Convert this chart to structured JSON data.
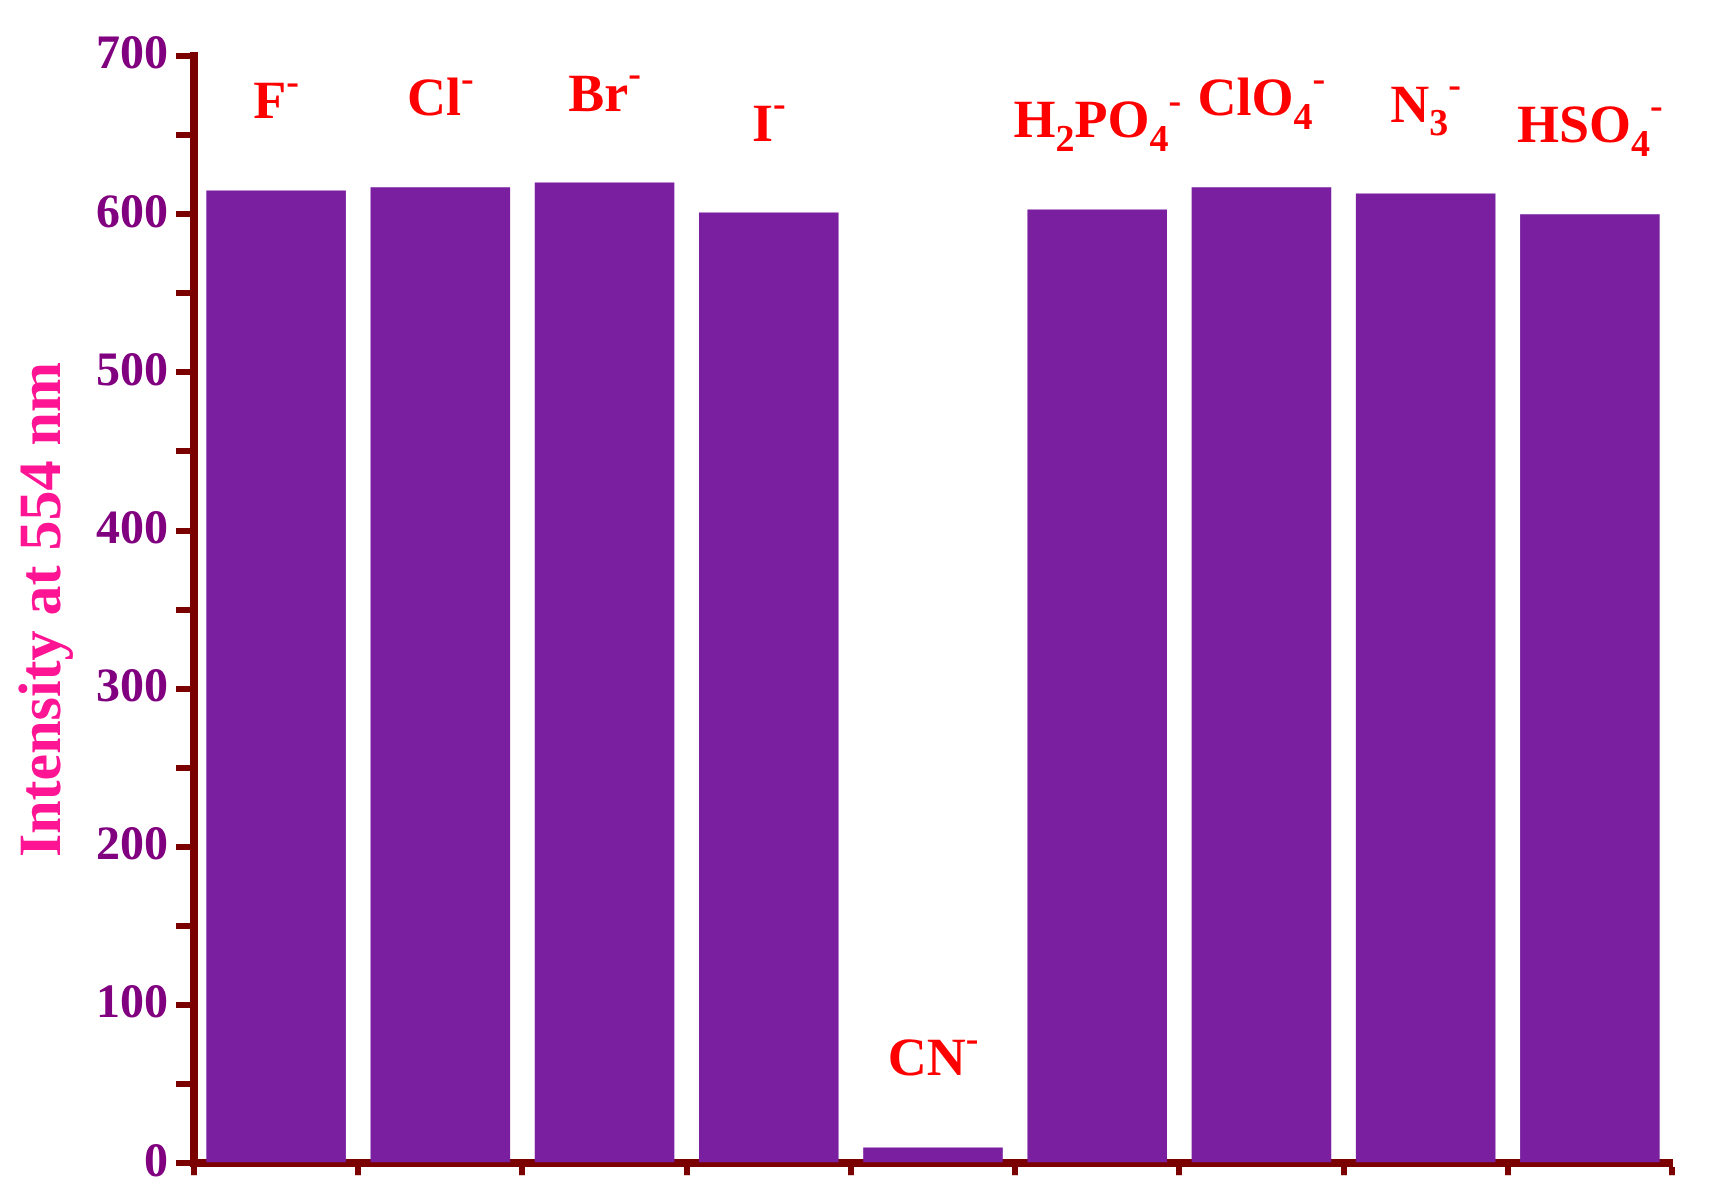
{
  "chart_data": {
    "type": "bar",
    "ylabel": "Intensity at 554 nm",
    "categories": [
      "F$^{-}$",
      "Cl$^{-}$",
      "Br$^{-}$",
      "I$^{-}$",
      "CN$^{-}$",
      "H$_{2}$PO$_{4}$$^{-}$",
      "ClO$_{4}$$^{-}$",
      "N$_{3}$$^{-}$",
      "HSO$_{4}$$^{-}$"
    ],
    "values": [
      615,
      617,
      620,
      601,
      10,
      603,
      617,
      613,
      600
    ],
    "color": "#7a1fa0",
    "ylim": [
      0,
      700
    ],
    "yticks": [
      0,
      {
        "value": 50,
        "label": null
      },
      100,
      {
        "value": 150,
        "label": null
      },
      200,
      {
        "value": 250,
        "label": null
      },
      300,
      {
        "value": 350,
        "label": null
      },
      400,
      {
        "value": 450,
        "label": null
      },
      500,
      {
        "value": 550,
        "label": null
      },
      600,
      {
        "value": 650,
        "label": null
      },
      700
    ],
    "grid": false,
    "legend": false
  }
}
